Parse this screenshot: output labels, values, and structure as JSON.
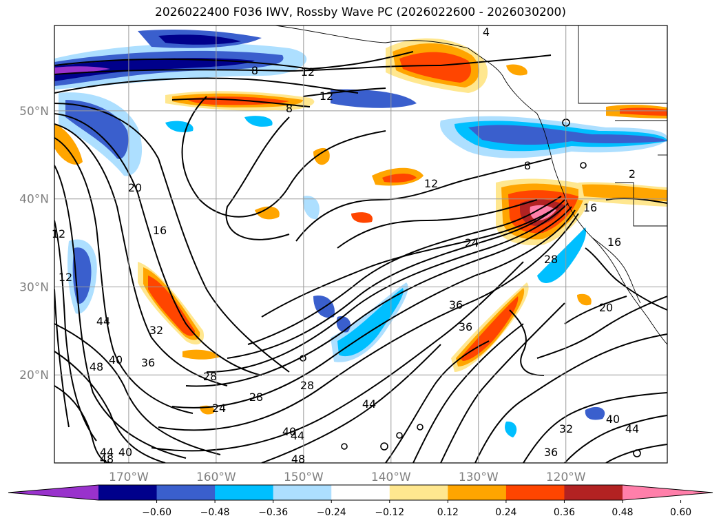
{
  "title": "2026022400 F036 IWV, Rossby Wave PC (2026022600 - 2026030200)",
  "lat_labels": [
    "50°N",
    "40°N",
    "30°N",
    "20°N"
  ],
  "lon_labels": [
    "170°W",
    "160°W",
    "150°W",
    "140°W",
    "130°W",
    "120°W"
  ],
  "colorbar": {
    "colors": [
      "#9932CC",
      "#00008B",
      "#3A5FCD",
      "#00BFFF",
      "#ADDFFF",
      "#FFFFFF",
      "#FFE78F",
      "#FFA500",
      "#FF4500",
      "#B22222",
      "#FF7FAA"
    ],
    "ticks": [
      "−0.60",
      "−0.48",
      "−0.36",
      "−0.24",
      "−0.12",
      "0.12",
      "0.24",
      "0.36",
      "0.48",
      "0.60"
    ]
  },
  "contour_labels": [
    "12",
    "8",
    "12",
    "8",
    "12",
    "8",
    "20",
    "16",
    "12",
    "12",
    "24",
    "16",
    "16",
    "28",
    "36",
    "36",
    "20",
    "32",
    "44",
    "40",
    "48",
    "36",
    "28",
    "28",
    "24",
    "28",
    "44",
    "40",
    "44",
    "48",
    "40",
    "44",
    "48",
    "32",
    "40",
    "36",
    "44",
    "4",
    "2"
  ],
  "chart_data": {
    "type": "map",
    "title": "2026022400 F036 IWV, Rossby Wave PC (2026022600 - 2026030200)",
    "projection": "lat-lon",
    "lon_ticks_deg": [
      -170,
      -160,
      -150,
      -140,
      -130,
      -120
    ],
    "lat_ticks_deg": [
      50,
      40,
      30,
      20
    ],
    "shaded_field": "Rossby Wave PC",
    "shading_levels": [
      -0.6,
      -0.48,
      -0.36,
      -0.24,
      -0.12,
      0.12,
      0.24,
      0.36,
      0.48,
      0.6
    ],
    "contour_field": "IWV",
    "grid": true
  }
}
